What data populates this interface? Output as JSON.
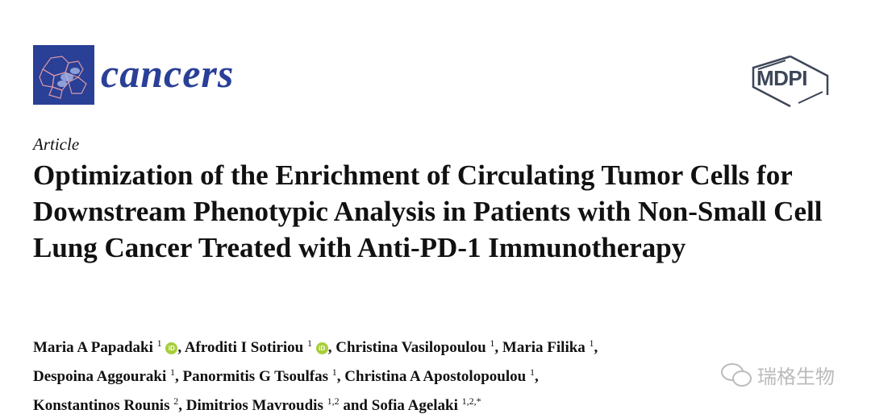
{
  "header": {
    "journal": "cancers",
    "publisher": "MDPI"
  },
  "article_type": "Article",
  "title": "Optimization of the Enrichment of Circulating Tumor Cells for Downstream Phenotypic Analysis in Patients with Non-Small Cell Lung Cancer Treated with Anti-PD-1 Immunotherapy",
  "authors": [
    {
      "name": "Maria A Papadaki",
      "aff": "1",
      "orcid": true,
      "sep": ", "
    },
    {
      "name": "Afroditi I Sotiriou",
      "aff": "1",
      "orcid": true,
      "sep": ", "
    },
    {
      "name": "Christina Vasilopoulou",
      "aff": "1",
      "sep": ", "
    },
    {
      "name": "Maria Filika",
      "aff": "1",
      "sep": ", "
    },
    {
      "name": "Despoina Aggouraki",
      "aff": "1",
      "sep": ", "
    },
    {
      "name": "Panormitis G Tsoulfas",
      "aff": "1",
      "sep": ", "
    },
    {
      "name": "Christina A Apostolopoulou",
      "aff": "1",
      "sep": ", "
    },
    {
      "name": "Konstantinos Rounis",
      "aff": "2",
      "sep": ", "
    },
    {
      "name": "Dimitrios Mavroudis",
      "aff": "1,2",
      "sep": " and "
    },
    {
      "name": "Sofia Agelaki",
      "aff": "1,2,*",
      "sep": ""
    }
  ],
  "orcid_label": "iD",
  "watermark": "瑞格生物",
  "colors": {
    "brand": "#2a3f96",
    "orcid": "#a6ce39"
  }
}
